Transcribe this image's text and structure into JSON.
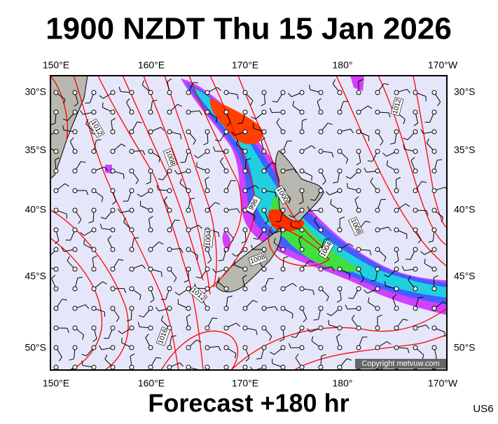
{
  "header": {
    "title": "1900 NZDT Thu 15 Jan 2026"
  },
  "map": {
    "lon_labels": [
      "150°E",
      "160°E",
      "170°E",
      "180°",
      "170°W"
    ],
    "lat_labels": [
      "30°S",
      "35°S",
      "40°S",
      "45°S",
      "50°S"
    ],
    "contour_labels": [
      "1012",
      "1008",
      "1012",
      "1000",
      "996",
      "1008",
      "1004",
      "1004",
      "1008",
      "1012",
      "1016"
    ],
    "copyright": "Copyright metvuw.com"
  },
  "footer": {
    "forecast": "Forecast +180 hr",
    "code": "US6"
  }
}
